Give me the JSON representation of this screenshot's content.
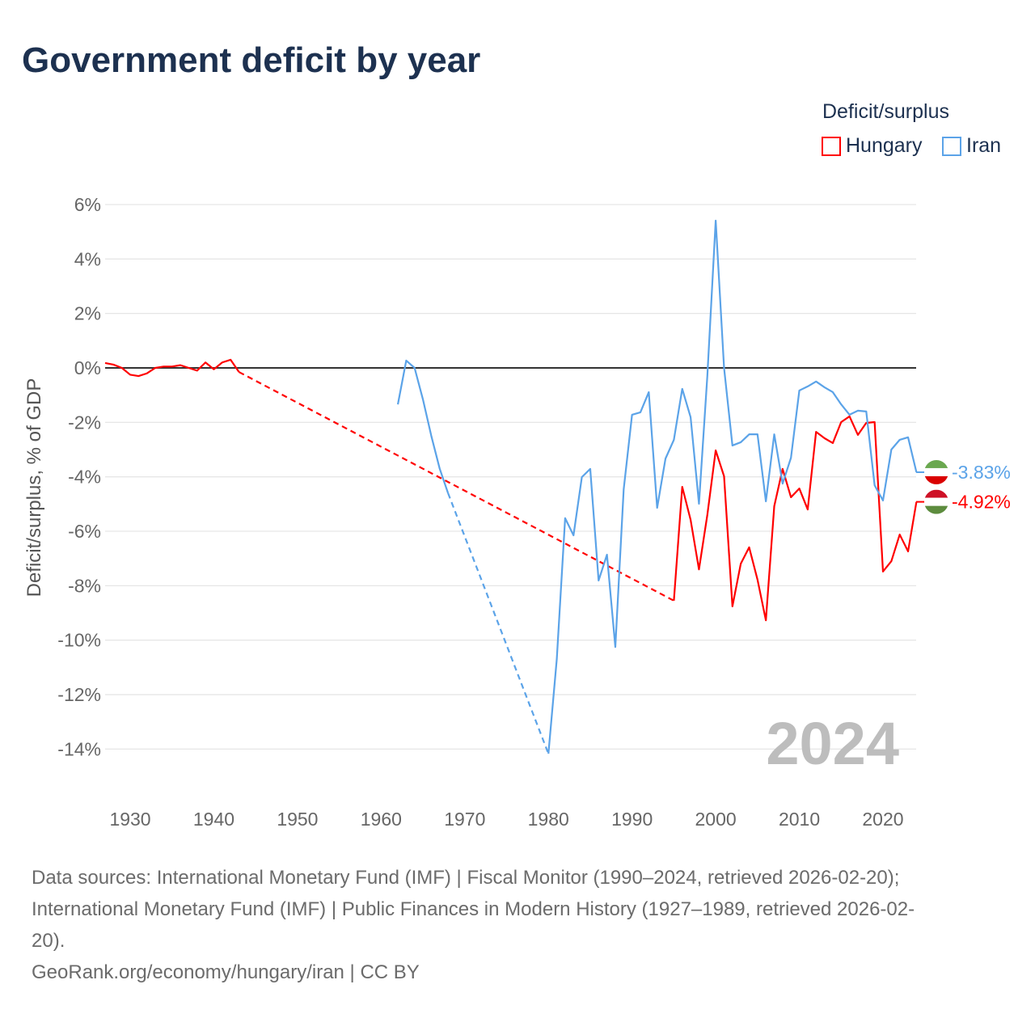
{
  "title": "Government deficit by year",
  "chart_data": {
    "type": "line",
    "title": "Government deficit by year",
    "xlabel": "",
    "ylabel": "Deficit/surplus, % of GDP",
    "xlim": [
      1927,
      2024
    ],
    "ylim": [
      -15,
      6.5
    ],
    "x_ticks": [
      1930,
      1940,
      1950,
      1960,
      1970,
      1980,
      1990,
      2000,
      2010,
      2020
    ],
    "x_tick_labels": [
      "1930",
      "1940",
      "1950",
      "1960",
      "1970",
      "1980",
      "1990",
      "2000",
      "2010",
      "2020"
    ],
    "y_ticks": [
      6,
      4,
      2,
      0,
      -2,
      -4,
      -6,
      -8,
      -10,
      -12,
      -14
    ],
    "y_tick_labels": [
      "6%",
      "4%",
      "2%",
      "0%",
      "-2%",
      "-4%",
      "-6%",
      "-8%",
      "-10%",
      "-12%",
      "-14%"
    ],
    "grid": true,
    "legend_title": "Deficit/surplus",
    "legend_position": "top-right",
    "year_watermark": "2024",
    "series": [
      {
        "name": "Hungary",
        "color": "#ff0000",
        "end_label": "-4.92%",
        "x": [
          1927,
          1928,
          1929,
          1930,
          1931,
          1932,
          1933,
          1934,
          1935,
          1936,
          1937,
          1938,
          1939,
          1940,
          1941,
          1942,
          1943,
          1995,
          1996,
          1997,
          1998,
          1999,
          2000,
          2001,
          2002,
          2003,
          2004,
          2005,
          2006,
          2007,
          2008,
          2009,
          2010,
          2011,
          2012,
          2013,
          2014,
          2015,
          2016,
          2017,
          2018,
          2019,
          2020,
          2021,
          2022,
          2023,
          2024
        ],
        "y": [
          0.18,
          0.12,
          0,
          -0.25,
          -0.3,
          -0.2,
          0,
          0.05,
          0.05,
          0.1,
          0,
          -0.1,
          0.2,
          -0.05,
          0.2,
          0.3,
          -0.15,
          -8.55,
          -4.37,
          -5.58,
          -7.4,
          -5.4,
          -3.03,
          -3.98,
          -8.76,
          -7.19,
          -6.59,
          -7.78,
          -9.27,
          -5.08,
          -3.71,
          -4.75,
          -4.43,
          -5.2,
          -2.35,
          -2.58,
          -2.76,
          -1.99,
          -1.78,
          -2.46,
          -2.02,
          -1.99,
          -7.48,
          -7.1,
          -6.12,
          -6.74,
          -4.92
        ]
      },
      {
        "name": "Iran",
        "color": "#5ba3e8",
        "end_label": "-3.83%",
        "x": [
          1962,
          1963,
          1964,
          1965,
          1966,
          1967,
          1968,
          1980,
          1981,
          1982,
          1983,
          1984,
          1985,
          1986,
          1987,
          1988,
          1989,
          1990,
          1991,
          1992,
          1993,
          1994,
          1995,
          1996,
          1997,
          1998,
          1999,
          2000,
          2001,
          2002,
          2003,
          2004,
          2005,
          2006,
          2007,
          2008,
          2009,
          2010,
          2011,
          2012,
          2013,
          2014,
          2015,
          2016,
          2017,
          2018,
          2019,
          2020,
          2021,
          2022,
          2023,
          2024
        ],
        "y": [
          -1.34,
          0.27,
          0,
          -1.16,
          -2.5,
          -3.7,
          -4.6,
          -14.17,
          -10.7,
          -5.52,
          -6.15,
          -4.01,
          -3.71,
          -7.81,
          -6.86,
          -10.25,
          -4.46,
          -1.72,
          -1.63,
          -0.89,
          -5.14,
          -3.33,
          -2.64,
          -0.77,
          -1.81,
          -4.99,
          -0.3,
          5.41,
          0,
          -2.85,
          -2.73,
          -2.44,
          -2.44,
          -4.9,
          -2.44,
          -4.25,
          -3.3,
          -0.83,
          -0.68,
          -0.5,
          -0.71,
          -0.89,
          -1.34,
          -1.72,
          -1.57,
          -1.6,
          -4.31,
          -4.87,
          -3.0,
          -2.64,
          -2.55,
          -3.83
        ]
      }
    ]
  },
  "footer": {
    "sources_line1": "Data sources: International Monetary Fund (IMF) | Fiscal Monitor (1990–2024, retrieved 2026-02-20);",
    "sources_line2": "International Monetary Fund (IMF) | Public Finances in Modern History (1927–1989, retrieved 2026-02-",
    "sources_line3": "20).",
    "attribution": "GeoRank.org/economy/hungary/iran | CC BY"
  }
}
